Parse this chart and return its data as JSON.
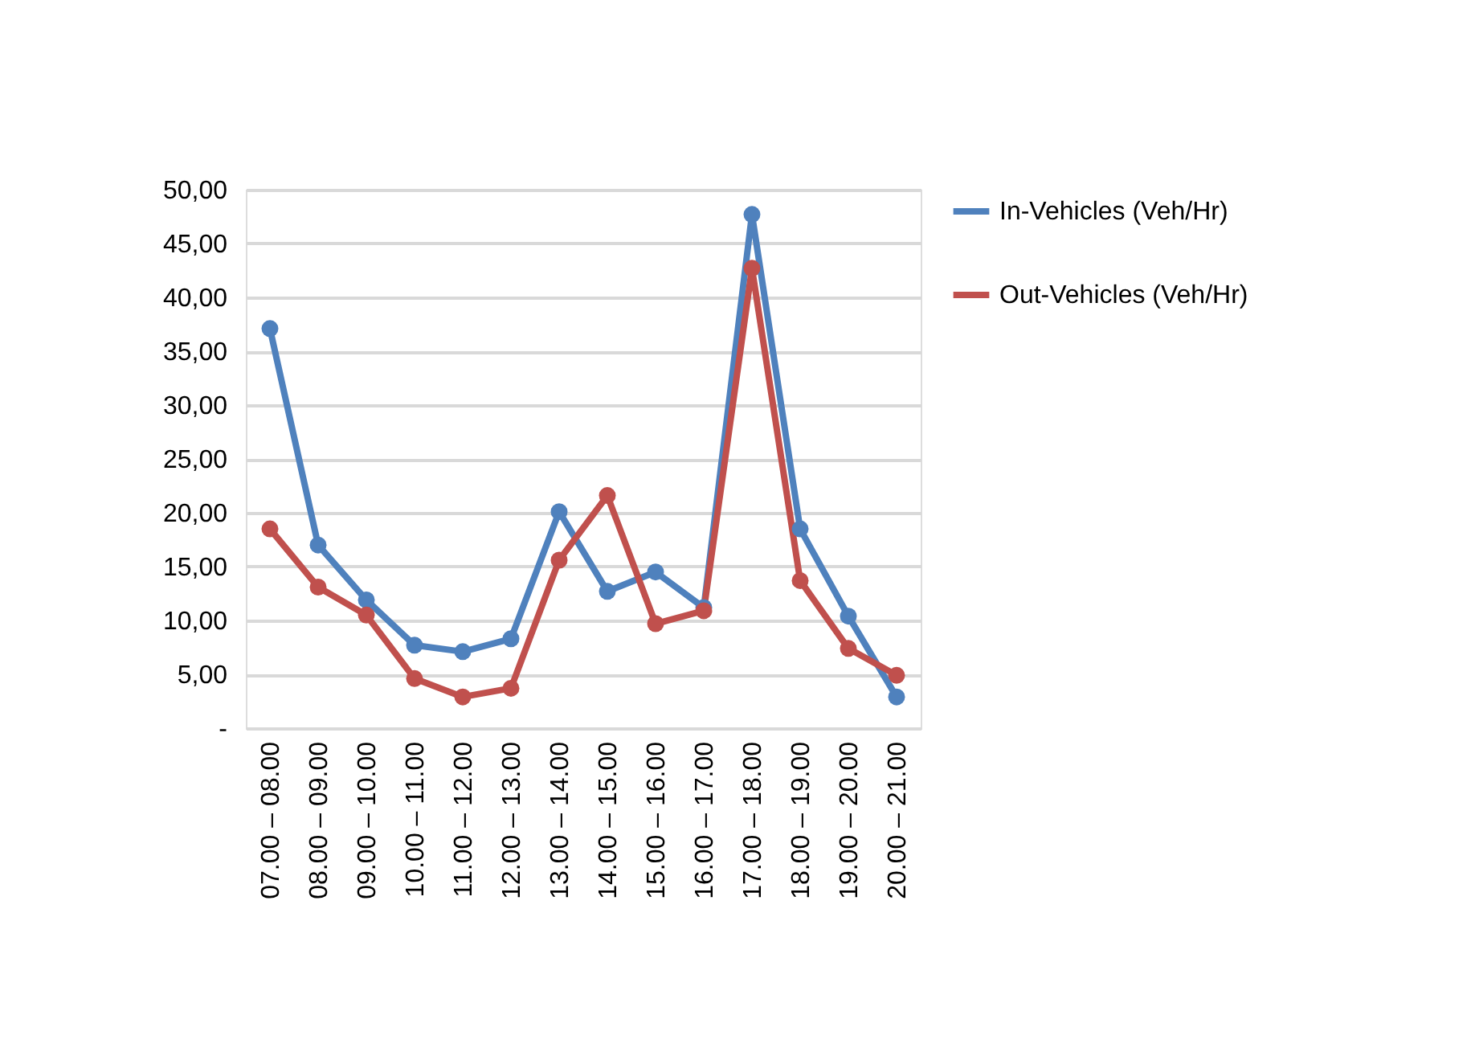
{
  "chart_data": {
    "type": "line",
    "categories": [
      "07.00 – 08.00",
      "08.00 – 09.00",
      "09.00 – 10.00",
      "10.00 – 11.00",
      "11.00 – 12.00",
      "12.00 – 13.00",
      "13.00 – 14.00",
      "14.00 – 15.00",
      "15.00 – 16.00",
      "16.00 – 17.00",
      "17.00 – 18.00",
      "18.00 – 19.00",
      "19.00 – 20.00",
      "20.00 – 21.00"
    ],
    "series": [
      {
        "name": "In-Vehicles (Veh/Hr)",
        "color": "#4f81bd",
        "values": [
          37.1,
          17.0,
          11.9,
          7.7,
          7.1,
          8.3,
          20.1,
          12.7,
          14.5,
          11.2,
          47.7,
          18.5,
          10.4,
          2.9
        ]
      },
      {
        "name": "Out-Vehicles (Veh/Hr)",
        "color": "#c0504d",
        "values": [
          18.5,
          13.1,
          10.5,
          4.6,
          2.9,
          3.7,
          15.6,
          21.6,
          9.7,
          10.9,
          42.7,
          13.7,
          7.4,
          4.9
        ]
      }
    ],
    "ylim": [
      0,
      50
    ],
    "yticks": [
      {
        "value": 0,
        "label": "-"
      },
      {
        "value": 5,
        "label": "5,00"
      },
      {
        "value": 10,
        "label": "10,00"
      },
      {
        "value": 15,
        "label": "15,00"
      },
      {
        "value": 20,
        "label": "20,00"
      },
      {
        "value": 25,
        "label": "25,00"
      },
      {
        "value": 30,
        "label": "30,00"
      },
      {
        "value": 35,
        "label": "35,00"
      },
      {
        "value": 40,
        "label": "40,00"
      },
      {
        "value": 45,
        "label": "45,00"
      },
      {
        "value": 50,
        "label": "50,00"
      }
    ],
    "grid": "y",
    "legend": "right",
    "marker": "circle",
    "line_style": "solid"
  }
}
